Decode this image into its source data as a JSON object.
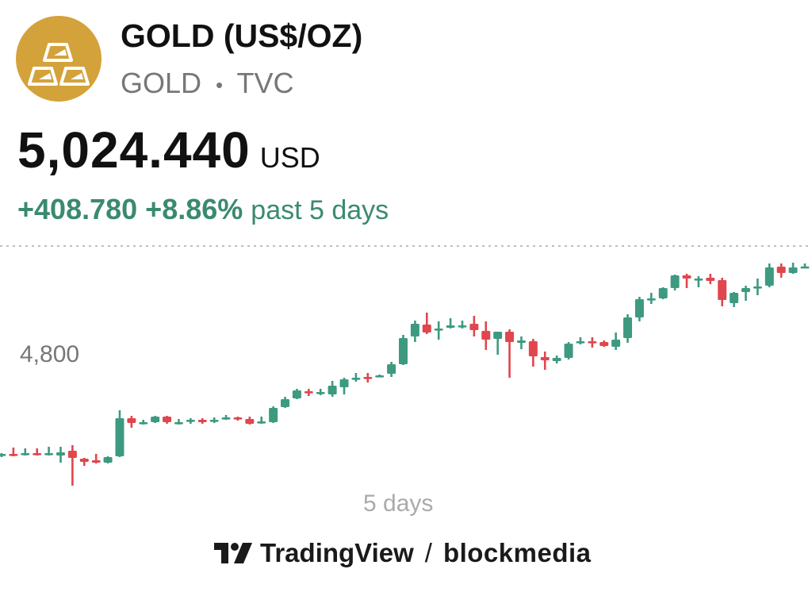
{
  "header": {
    "logo_icon": "gold-bars-icon",
    "logo_color": "#D4A23A",
    "title": "GOLD (US$/OZ)",
    "symbol": "GOLD",
    "separator": "•",
    "exchange": "TVC"
  },
  "quote": {
    "price": "5,024.440",
    "currency": "USD",
    "change_abs": "+408.780",
    "change_pct": "+8.86%",
    "change_period": "past 5 days",
    "change_color": "#3A8A70"
  },
  "footer": {
    "brand": "TradingView",
    "separator": "/",
    "partner": "blockmedia"
  },
  "chart_data": {
    "type": "candlestick",
    "period_label": "5 days",
    "y_tick_labels": [
      "4,800"
    ],
    "y_ticks": [
      4800
    ],
    "ylim": [
      4440,
      5110
    ],
    "grid": false,
    "up_color": "#3D9A80",
    "down_color": "#E0464E",
    "candles_ohlc": [
      [
        4548,
        4554,
        4544,
        4552
      ],
      [
        4552,
        4568,
        4546,
        4548
      ],
      [
        4550,
        4566,
        4548,
        4554
      ],
      [
        4554,
        4566,
        4548,
        4550
      ],
      [
        4550,
        4570,
        4548,
        4554
      ],
      [
        4548,
        4570,
        4530,
        4556
      ],
      [
        4560,
        4574,
        4472,
        4542
      ],
      [
        4540,
        4542,
        4522,
        4532
      ],
      [
        4536,
        4552,
        4528,
        4530
      ],
      [
        4530,
        4546,
        4528,
        4544
      ],
      [
        4546,
        4662,
        4544,
        4642
      ],
      [
        4642,
        4648,
        4618,
        4630
      ],
      [
        4628,
        4638,
        4626,
        4632
      ],
      [
        4632,
        4648,
        4630,
        4646
      ],
      [
        4646,
        4648,
        4628,
        4632
      ],
      [
        4628,
        4640,
        4626,
        4632
      ],
      [
        4634,
        4642,
        4628,
        4638
      ],
      [
        4638,
        4642,
        4628,
        4632
      ],
      [
        4634,
        4644,
        4630,
        4638
      ],
      [
        4640,
        4650,
        4638,
        4644
      ],
      [
        4644,
        4646,
        4636,
        4640
      ],
      [
        4640,
        4646,
        4626,
        4628
      ],
      [
        4630,
        4646,
        4628,
        4634
      ],
      [
        4632,
        4672,
        4630,
        4668
      ],
      [
        4670,
        4696,
        4668,
        4690
      ],
      [
        4692,
        4716,
        4690,
        4712
      ],
      [
        4710,
        4716,
        4698,
        4706
      ],
      [
        4704,
        4716,
        4700,
        4708
      ],
      [
        4702,
        4736,
        4696,
        4724
      ],
      [
        4720,
        4744,
        4702,
        4740
      ],
      [
        4742,
        4756,
        4734,
        4744
      ],
      [
        4746,
        4756,
        4732,
        4742
      ],
      [
        4748,
        4752,
        4746,
        4750
      ],
      [
        4754,
        4784,
        4746,
        4778
      ],
      [
        4778,
        4852,
        4776,
        4844
      ],
      [
        4848,
        4888,
        4834,
        4880
      ],
      [
        4878,
        4908,
        4854,
        4858
      ],
      [
        4866,
        4886,
        4840,
        4868
      ],
      [
        4870,
        4894,
        4868,
        4876
      ],
      [
        4874,
        4888,
        4868,
        4876
      ],
      [
        4880,
        4900,
        4848,
        4864
      ],
      [
        4862,
        4886,
        4814,
        4840
      ],
      [
        4842,
        4860,
        4802,
        4860
      ],
      [
        4860,
        4866,
        4744,
        4834
      ],
      [
        4832,
        4848,
        4816,
        4838
      ],
      [
        4836,
        4842,
        4772,
        4798
      ],
      [
        4796,
        4810,
        4764,
        4788
      ],
      [
        4786,
        4800,
        4780,
        4794
      ],
      [
        4794,
        4834,
        4790,
        4830
      ],
      [
        4832,
        4846,
        4828,
        4836
      ],
      [
        4836,
        4846,
        4820,
        4832
      ],
      [
        4834,
        4838,
        4822,
        4824
      ],
      [
        4822,
        4858,
        4814,
        4840
      ],
      [
        4844,
        4904,
        4832,
        4896
      ],
      [
        4896,
        4948,
        4886,
        4942
      ],
      [
        4940,
        4958,
        4930,
        4944
      ],
      [
        4944,
        4972,
        4942,
        4970
      ],
      [
        4970,
        5004,
        4964,
        5002
      ],
      [
        5002,
        5006,
        4970,
        4994
      ],
      [
        4992,
        5000,
        4972,
        4994
      ],
      [
        4996,
        5006,
        4980,
        4988
      ],
      [
        4990,
        4996,
        4924,
        4940
      ],
      [
        4932,
        4960,
        4922,
        4958
      ],
      [
        4960,
        4976,
        4938,
        4970
      ],
      [
        4972,
        4994,
        4952,
        4974
      ],
      [
        4976,
        5032,
        4972,
        5022
      ],
      [
        5024,
        5032,
        4996,
        5008
      ],
      [
        5008,
        5034,
        5006,
        5022
      ],
      [
        5024,
        5032,
        5022,
        5024.44
      ]
    ]
  }
}
